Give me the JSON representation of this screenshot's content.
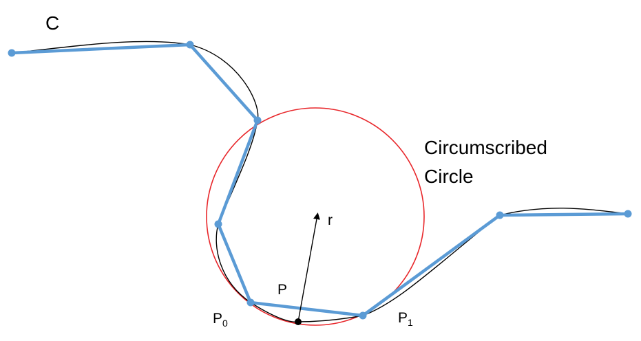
{
  "labels": {
    "curve": "C",
    "circle_line1": "Circumscribed",
    "circle_line2": "Circle",
    "radius": "r",
    "point": "P",
    "p0_main": "P",
    "p0_sub": "0",
    "p1_main": "P",
    "p1_sub": "1"
  },
  "colors": {
    "polyline": "#5b9bd5",
    "curve": "#000000",
    "circle": "#e8262a",
    "point": "#000000"
  }
}
